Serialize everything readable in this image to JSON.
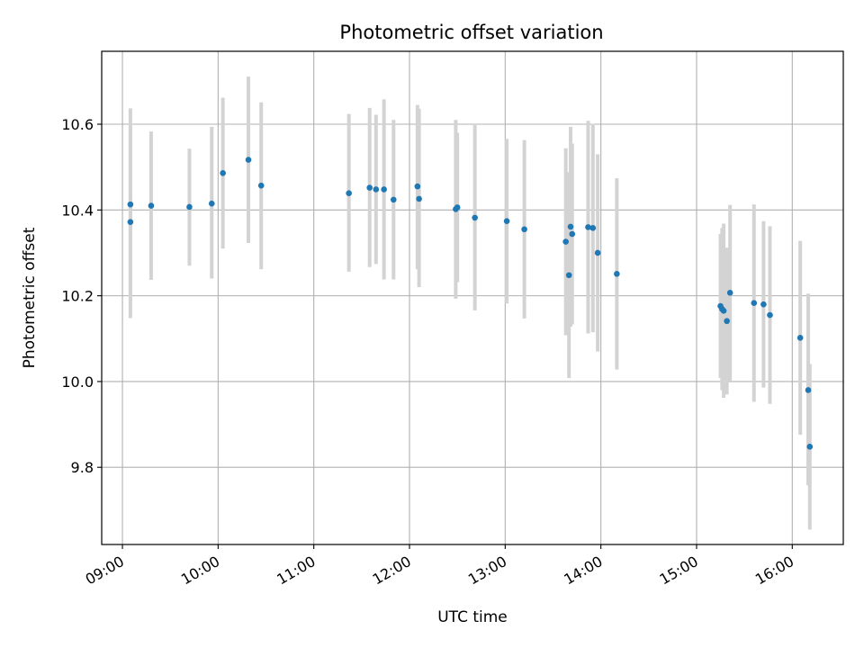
{
  "chart_data": {
    "type": "scatter",
    "title": "Photometric offset variation",
    "xlabel": "UTC time",
    "ylabel": "Photometric offset",
    "grid": true,
    "x_ticks": [
      "09:00",
      "10:00",
      "11:00",
      "12:00",
      "13:00",
      "14:00",
      "15:00",
      "16:00"
    ],
    "y_ticks": [
      9.8,
      10.0,
      10.2,
      10.4,
      10.6
    ],
    "xlim": [
      "08:47",
      "16:32"
    ],
    "ylim": [
      9.62,
      10.77
    ],
    "colors": {
      "points": "#1f77b4",
      "error_bars": "#d3d3d3",
      "grid": "#b0b0b0"
    },
    "points": [
      {
        "x": "09:05",
        "y": 10.413,
        "ylow": 10.19,
        "yhigh": 10.637
      },
      {
        "x": "09:05",
        "y": 10.372,
        "ylow": 10.148,
        "yhigh": 10.594
      },
      {
        "x": "09:18",
        "y": 10.41,
        "ylow": 10.237,
        "yhigh": 10.583
      },
      {
        "x": "09:42",
        "y": 10.407,
        "ylow": 10.27,
        "yhigh": 10.543
      },
      {
        "x": "09:56",
        "y": 10.415,
        "ylow": 10.24,
        "yhigh": 10.594
      },
      {
        "x": "10:03",
        "y": 10.486,
        "ylow": 10.31,
        "yhigh": 10.662
      },
      {
        "x": "10:19",
        "y": 10.517,
        "ylow": 10.323,
        "yhigh": 10.711
      },
      {
        "x": "10:27",
        "y": 10.457,
        "ylow": 10.262,
        "yhigh": 10.651
      },
      {
        "x": "11:22",
        "y": 10.439,
        "ylow": 10.256,
        "yhigh": 10.624
      },
      {
        "x": "11:35",
        "y": 10.452,
        "ylow": 10.267,
        "yhigh": 10.638
      },
      {
        "x": "11:39",
        "y": 10.448,
        "ylow": 10.274,
        "yhigh": 10.622
      },
      {
        "x": "11:44",
        "y": 10.448,
        "ylow": 10.238,
        "yhigh": 10.658
      },
      {
        "x": "11:50",
        "y": 10.424,
        "ylow": 10.238,
        "yhigh": 10.61
      },
      {
        "x": "12:05",
        "y": 10.455,
        "ylow": 10.262,
        "yhigh": 10.645
      },
      {
        "x": "12:06",
        "y": 10.426,
        "ylow": 10.22,
        "yhigh": 10.636
      },
      {
        "x": "12:29",
        "y": 10.402,
        "ylow": 10.193,
        "yhigh": 10.61
      },
      {
        "x": "12:30",
        "y": 10.406,
        "ylow": 10.232,
        "yhigh": 10.58
      },
      {
        "x": "12:41",
        "y": 10.382,
        "ylow": 10.166,
        "yhigh": 10.598
      },
      {
        "x": "13:01",
        "y": 10.374,
        "ylow": 10.182,
        "yhigh": 10.566
      },
      {
        "x": "13:12",
        "y": 10.355,
        "ylow": 10.147,
        "yhigh": 10.563
      },
      {
        "x": "13:38",
        "y": 10.326,
        "ylow": 10.108,
        "yhigh": 10.544
      },
      {
        "x": "13:40",
        "y": 10.248,
        "ylow": 10.008,
        "yhigh": 10.488
      },
      {
        "x": "13:41",
        "y": 10.361,
        "ylow": 10.128,
        "yhigh": 10.594
      },
      {
        "x": "13:42",
        "y": 10.344,
        "ylow": 10.133,
        "yhigh": 10.555
      },
      {
        "x": "13:52",
        "y": 10.36,
        "ylow": 10.112,
        "yhigh": 10.608
      },
      {
        "x": "13:55",
        "y": 10.358,
        "ylow": 10.115,
        "yhigh": 10.601
      },
      {
        "x": "13:58",
        "y": 10.3,
        "ylow": 10.07,
        "yhigh": 10.53
      },
      {
        "x": "14:10",
        "y": 10.251,
        "ylow": 10.028,
        "yhigh": 10.474
      },
      {
        "x": "15:15",
        "y": 10.176,
        "ylow": 10.008,
        "yhigh": 10.344
      },
      {
        "x": "15:16",
        "y": 10.169,
        "ylow": 9.98,
        "yhigh": 10.358
      },
      {
        "x": "15:17",
        "y": 10.165,
        "ylow": 9.962,
        "yhigh": 10.368
      },
      {
        "x": "15:19",
        "y": 10.141,
        "ylow": 9.97,
        "yhigh": 10.312
      },
      {
        "x": "15:21",
        "y": 10.207,
        "ylow": 10.002,
        "yhigh": 10.412
      },
      {
        "x": "15:36",
        "y": 10.183,
        "ylow": 9.953,
        "yhigh": 10.413
      },
      {
        "x": "15:42",
        "y": 10.18,
        "ylow": 9.986,
        "yhigh": 10.374
      },
      {
        "x": "15:46",
        "y": 10.155,
        "ylow": 9.948,
        "yhigh": 10.362
      },
      {
        "x": "16:05",
        "y": 10.102,
        "ylow": 9.876,
        "yhigh": 10.328
      },
      {
        "x": "16:10",
        "y": 9.98,
        "ylow": 9.758,
        "yhigh": 10.205
      },
      {
        "x": "16:11",
        "y": 9.848,
        "ylow": 9.655,
        "yhigh": 10.041
      }
    ]
  }
}
